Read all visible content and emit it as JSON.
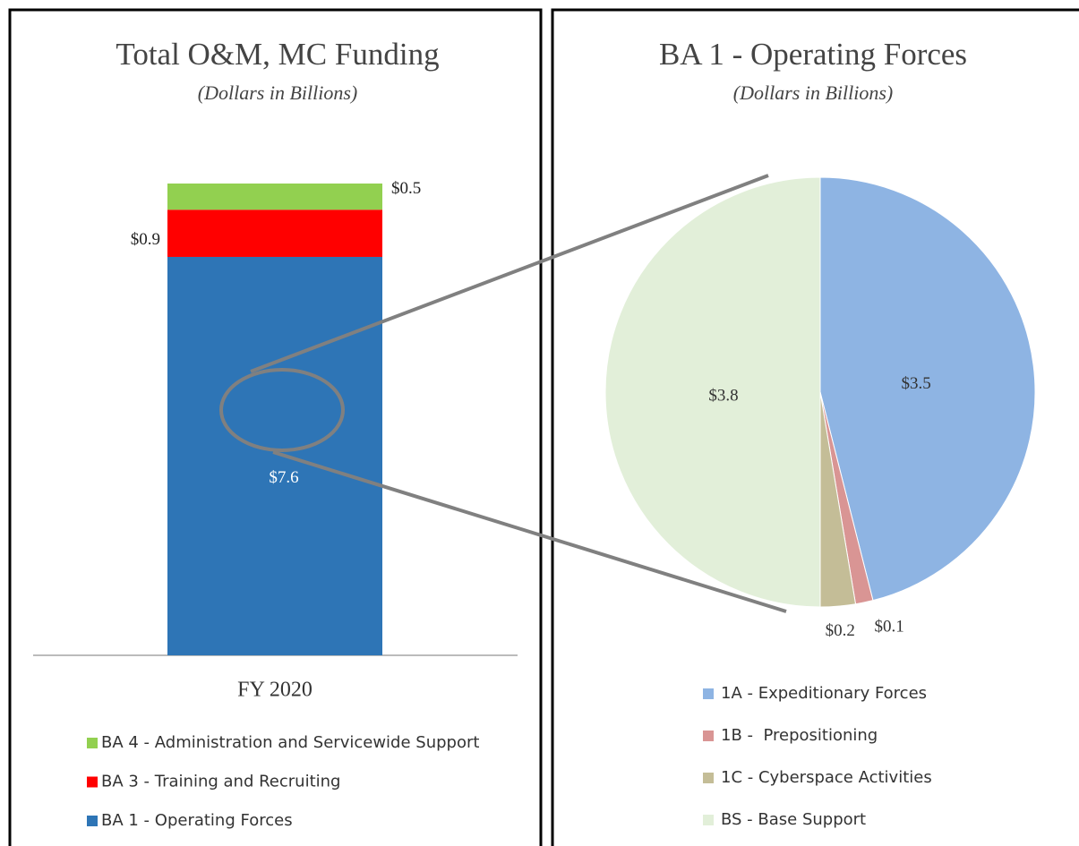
{
  "chart_data": [
    {
      "type": "bar",
      "title": "Total O&M, MC Funding",
      "subtitle": "(Dollars in Billions)",
      "categories": [
        "FY 2020"
      ],
      "series": [
        {
          "name": "BA 1 - Operating Forces",
          "color": "#2e75b6",
          "values": [
            7.6
          ],
          "value_labels": [
            "$7.6"
          ]
        },
        {
          "name": "BA 3 - Training and Recruiting",
          "color": "#ff0000",
          "values": [
            0.9
          ],
          "value_labels": [
            "$0.9"
          ]
        },
        {
          "name": "BA 4 - Administration and Servicewide Support",
          "color": "#92d050",
          "values": [
            0.5
          ],
          "value_labels": [
            "$0.5"
          ]
        }
      ]
    },
    {
      "type": "pie",
      "title": "BA 1 - Operating Forces",
      "subtitle": "(Dollars in Billions)",
      "categories": [
        "1A - Expeditionary Forces",
        "1B -  Prepositioning",
        "1C - Cyberspace Activities",
        "BS - Base Support"
      ],
      "values": [
        3.5,
        0.1,
        0.2,
        3.8
      ],
      "value_labels": [
        "$3.5",
        "$0.1",
        "$0.2",
        "$3.8"
      ],
      "colors": [
        "#8eb4e3",
        "#d99594",
        "#c4bd97",
        "#e2efd9"
      ]
    }
  ]
}
